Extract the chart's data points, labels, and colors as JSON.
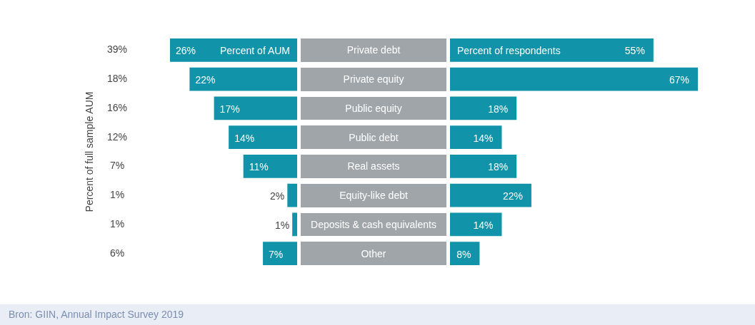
{
  "chart_data": [
    {
      "type": "bar",
      "orientation": "horizontal",
      "ylabel": "Percent of full sample AUM",
      "categories": [
        "Private debt",
        "Private equity",
        "Public equity",
        "Public debt",
        "Real assets",
        "Equity-like debt",
        "Deposits & cash equivalents",
        "Other"
      ],
      "series": [
        {
          "name": "Percent of AUM",
          "color": "#1193a9",
          "values": [
            26,
            22,
            17,
            14,
            11,
            2,
            1,
            7
          ],
          "value_labels": [
            "26%",
            "22%",
            "17%",
            "14%",
            "11%",
            "2%",
            "1%",
            "7%"
          ]
        }
      ],
      "annotations": [
        "39%",
        "18%",
        "16%",
        "12%",
        "7%",
        "1%",
        "1%",
        "6%",
        "Bron: GIIN, Annual Impact Survey 2019"
      ]
    },
    {
      "type": "bar",
      "orientation": "horizontal",
      "categories": [
        null,
        null,
        null,
        null,
        null,
        null,
        null,
        null
      ],
      "series": [
        {
          "name": "Percent of respondents",
          "color": "#1193a9",
          "values": [
            55,
            67,
            18,
            14,
            18,
            22,
            14,
            8
          ],
          "value_labels": [
            "55%",
            "67%",
            "18%",
            "14%",
            "18%",
            "22%",
            "14%",
            "8%"
          ]
        }
      ]
    }
  ]
}
